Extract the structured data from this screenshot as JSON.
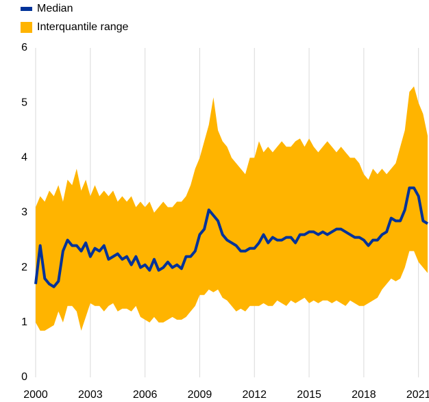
{
  "chart_data": {
    "type": "line",
    "x": [
      2000,
      2000.25,
      2000.5,
      2000.75,
      2001,
      2001.25,
      2001.5,
      2001.75,
      2002,
      2002.25,
      2002.5,
      2002.75,
      2003,
      2003.25,
      2003.5,
      2003.75,
      2004,
      2004.25,
      2004.5,
      2004.75,
      2005,
      2005.25,
      2005.5,
      2005.75,
      2006,
      2006.25,
      2006.5,
      2006.75,
      2007,
      2007.25,
      2007.5,
      2007.75,
      2008,
      2008.25,
      2008.5,
      2008.75,
      2009,
      2009.25,
      2009.5,
      2009.75,
      2010,
      2010.25,
      2010.5,
      2010.75,
      2011,
      2011.25,
      2011.5,
      2011.75,
      2012,
      2012.25,
      2012.5,
      2012.75,
      2013,
      2013.25,
      2013.5,
      2013.75,
      2014,
      2014.25,
      2014.5,
      2014.75,
      2015,
      2015.25,
      2015.5,
      2015.75,
      2016,
      2016.25,
      2016.5,
      2016.75,
      2017,
      2017.25,
      2017.5,
      2017.75,
      2018,
      2018.25,
      2018.5,
      2018.75,
      2019,
      2019.25,
      2019.5,
      2019.75,
      2020,
      2020.25,
      2020.5,
      2020.75,
      2021,
      2021.25,
      2021.5
    ],
    "series": [
      {
        "name": "Median",
        "color": "#003299",
        "values": [
          1.7,
          2.4,
          1.8,
          1.7,
          1.65,
          1.75,
          2.3,
          2.5,
          2.4,
          2.4,
          2.3,
          2.45,
          2.2,
          2.35,
          2.3,
          2.4,
          2.15,
          2.2,
          2.25,
          2.15,
          2.2,
          2.05,
          2.2,
          2.0,
          2.05,
          1.95,
          2.15,
          1.95,
          2.0,
          2.1,
          2.0,
          2.05,
          1.98,
          2.2,
          2.2,
          2.3,
          2.6,
          2.7,
          3.05,
          2.95,
          2.85,
          2.6,
          2.5,
          2.45,
          2.4,
          2.3,
          2.3,
          2.35,
          2.35,
          2.45,
          2.6,
          2.45,
          2.55,
          2.5,
          2.5,
          2.55,
          2.55,
          2.45,
          2.6,
          2.6,
          2.65,
          2.65,
          2.6,
          2.65,
          2.6,
          2.65,
          2.7,
          2.7,
          2.65,
          2.6,
          2.55,
          2.55,
          2.5,
          2.4,
          2.5,
          2.5,
          2.6,
          2.65,
          2.9,
          2.85,
          2.85,
          3.05,
          3.45,
          3.45,
          3.3,
          2.85,
          2.8
        ]
      },
      {
        "name": "Interquantile range",
        "color": "#ffb400",
        "upper": [
          3.1,
          3.3,
          3.2,
          3.4,
          3.3,
          3.5,
          3.2,
          3.6,
          3.5,
          3.8,
          3.4,
          3.6,
          3.3,
          3.5,
          3.3,
          3.4,
          3.3,
          3.4,
          3.2,
          3.3,
          3.2,
          3.3,
          3.1,
          3.2,
          3.1,
          3.2,
          3.0,
          3.1,
          3.2,
          3.1,
          3.1,
          3.2,
          3.2,
          3.3,
          3.5,
          3.8,
          4.0,
          4.3,
          4.6,
          5.1,
          4.5,
          4.3,
          4.2,
          4.0,
          3.9,
          3.8,
          3.7,
          4.0,
          4.0,
          4.3,
          4.1,
          4.2,
          4.1,
          4.2,
          4.3,
          4.2,
          4.2,
          4.3,
          4.35,
          4.2,
          4.35,
          4.2,
          4.1,
          4.2,
          4.3,
          4.2,
          4.1,
          4.2,
          4.1,
          4.0,
          4.0,
          3.9,
          3.7,
          3.6,
          3.8,
          3.7,
          3.8,
          3.7,
          3.8,
          3.9,
          4.2,
          4.5,
          5.2,
          5.3,
          5.0,
          4.8,
          4.4
        ],
        "lower": [
          1.0,
          0.85,
          0.85,
          0.9,
          0.95,
          1.2,
          1.0,
          1.3,
          1.3,
          1.2,
          0.85,
          1.1,
          1.35,
          1.3,
          1.3,
          1.2,
          1.3,
          1.35,
          1.2,
          1.25,
          1.25,
          1.2,
          1.3,
          1.1,
          1.05,
          1.0,
          1.1,
          1.0,
          1.0,
          1.05,
          1.1,
          1.05,
          1.05,
          1.1,
          1.2,
          1.3,
          1.5,
          1.5,
          1.6,
          1.55,
          1.6,
          1.45,
          1.4,
          1.3,
          1.2,
          1.25,
          1.2,
          1.3,
          1.3,
          1.3,
          1.35,
          1.3,
          1.3,
          1.4,
          1.35,
          1.3,
          1.4,
          1.35,
          1.4,
          1.45,
          1.35,
          1.4,
          1.35,
          1.4,
          1.4,
          1.35,
          1.4,
          1.35,
          1.3,
          1.4,
          1.35,
          1.3,
          1.3,
          1.35,
          1.4,
          1.45,
          1.6,
          1.7,
          1.8,
          1.75,
          1.8,
          2.0,
          2.3,
          2.3,
          2.1,
          2.0,
          1.9
        ]
      }
    ],
    "xlim": [
      2000,
      2021.5
    ],
    "xticks": [
      2000,
      2003,
      2006,
      2009,
      2012,
      2015,
      2018,
      2021
    ],
    "ylim": [
      0,
      6
    ],
    "yticks": [
      0,
      1,
      2,
      3,
      4,
      5,
      6
    ],
    "grid": "x"
  }
}
